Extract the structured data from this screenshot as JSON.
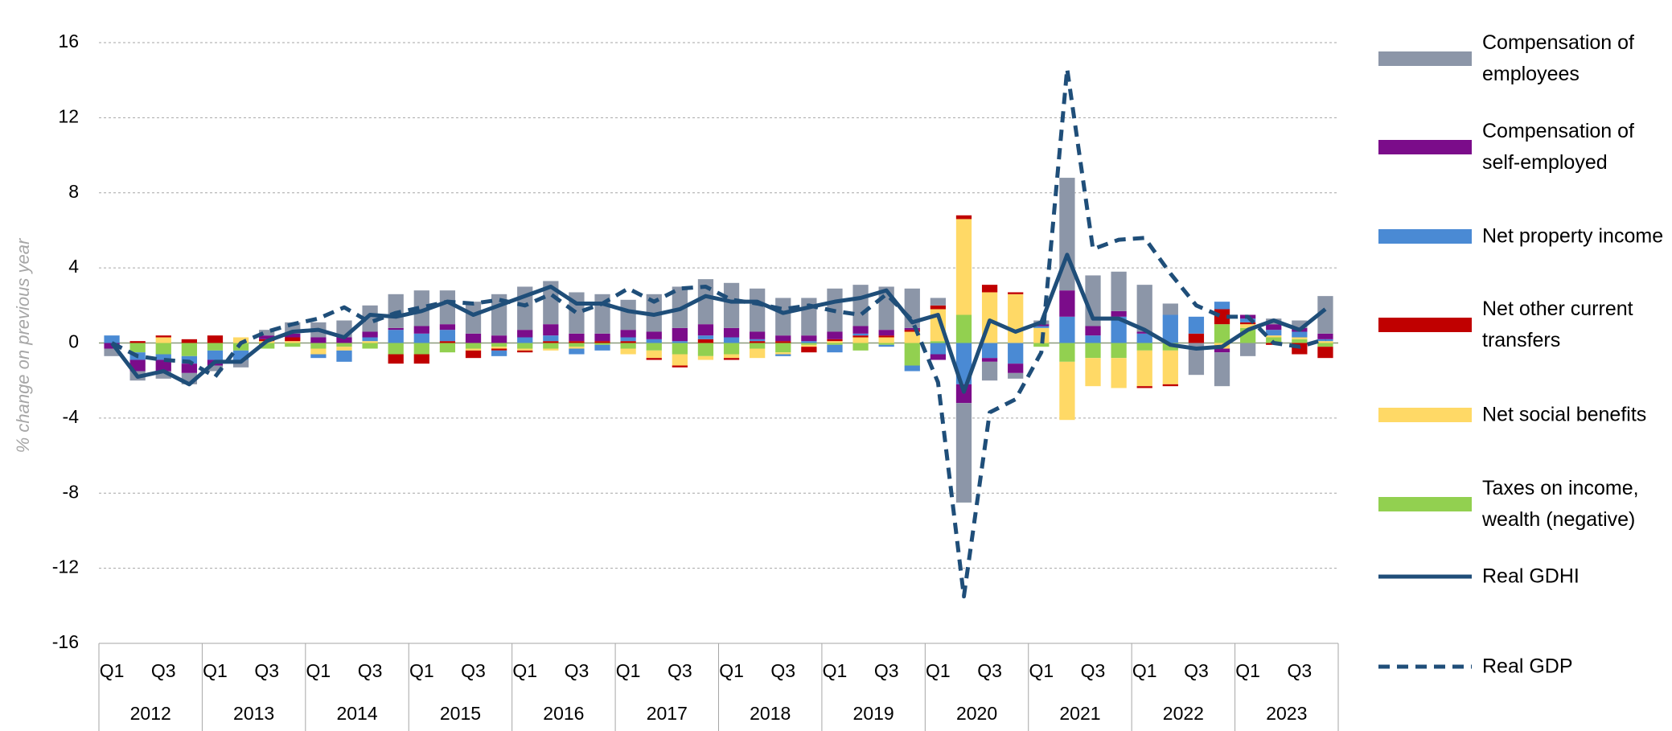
{
  "chart_data": {
    "type": "bar",
    "y_label": "% change on previous year",
    "categories": [
      "Q1",
      null,
      "Q3",
      null,
      "Q1",
      null,
      "Q3",
      null,
      "Q1",
      null,
      "Q3",
      null,
      "Q1",
      null,
      "Q3",
      null,
      "Q1",
      null,
      "Q3",
      null,
      "Q1",
      null,
      "Q3",
      null,
      "Q1",
      null,
      "Q3",
      null,
      "Q1",
      null,
      "Q3",
      null,
      "Q1",
      null,
      "Q3",
      null,
      "Q1",
      null,
      "Q3",
      null,
      "Q1",
      null,
      "Q3",
      null,
      "Q1",
      null,
      "Q3",
      null
    ],
    "years": [
      "2012",
      "2013",
      "2014",
      "2015",
      "2016",
      "2017",
      "2018",
      "2019",
      "2020",
      "2021",
      "2022",
      "2023"
    ],
    "ylim": [
      -16,
      16
    ],
    "yticks": [
      -16,
      -12,
      -8,
      -4,
      0,
      4,
      8,
      12,
      16
    ],
    "grid": true,
    "legend": "right",
    "series": [
      {
        "name": "Compensation of employees",
        "type": "bar",
        "color": "#8c96a8",
        "values": [
          -0.4,
          -0.5,
          -0.4,
          -0.6,
          -0.3,
          -0.4,
          0.3,
          0.6,
          0.8,
          0.9,
          1.4,
          1.8,
          1.9,
          1.8,
          1.7,
          2.2,
          2.3,
          2.3,
          2.2,
          2.1,
          1.6,
          2.0,
          2.2,
          2.4,
          2.4,
          2.3,
          2.0,
          2.0,
          2.3,
          2.2,
          2.3,
          2.1,
          0.4,
          -5.3,
          -1.0,
          -0.3,
          0.2,
          6.0,
          2.7,
          2.1,
          2.5,
          0.6,
          -1.7,
          -1.8,
          -0.7,
          0.3,
          0.4,
          2.0
        ]
      },
      {
        "name": "Compensation of self-employed",
        "type": "bar",
        "color": "#7b0c8a",
        "values": [
          -0.3,
          -0.6,
          -0.6,
          -0.5,
          -0.3,
          0,
          0.2,
          0.2,
          0.3,
          0.3,
          0.3,
          0.1,
          0.4,
          0.3,
          0.5,
          0.4,
          0.4,
          0.6,
          0.4,
          0.4,
          0.4,
          0.4,
          0.7,
          0.6,
          0.5,
          0.4,
          0.3,
          0.3,
          0.4,
          0.4,
          0.3,
          0.1,
          -0.3,
          -1.0,
          -0.2,
          -0.5,
          0.1,
          1.4,
          0.5,
          0.3,
          0.1,
          0,
          0,
          -0.2,
          0.2,
          0.3,
          0.2,
          0.3
        ]
      },
      {
        "name": "Net property income",
        "type": "bar",
        "color": "#4a8ad4",
        "values": [
          0.4,
          -0.4,
          -0.3,
          -0.4,
          -0.5,
          -0.5,
          0,
          0,
          -0.2,
          -0.6,
          0.2,
          0.7,
          0.5,
          0.6,
          0,
          -0.3,
          0.3,
          0.3,
          -0.3,
          -0.3,
          0.2,
          0.2,
          0.1,
          0.2,
          0.3,
          0.1,
          -0.1,
          0.1,
          -0.4,
          0.1,
          -0.1,
          -0.3,
          -0.6,
          -2.2,
          -0.8,
          -1.1,
          0.1,
          1.4,
          0.4,
          1.4,
          0.5,
          1.5,
          0.9,
          0.4,
          0.2,
          0.3,
          0.3,
          0.1
        ]
      },
      {
        "name": "Net other current transfers",
        "type": "bar",
        "color": "#c00000",
        "values": [
          0,
          0.1,
          0.1,
          0.2,
          0.4,
          0,
          0.1,
          0.2,
          0,
          0,
          0,
          -0.5,
          -0.5,
          0.1,
          -0.4,
          -0.1,
          -0.1,
          0.1,
          0.1,
          0.1,
          0.1,
          -0.1,
          -0.1,
          0.2,
          -0.1,
          0.1,
          0.1,
          -0.3,
          0.1,
          0.1,
          0.1,
          0.1,
          0.2,
          0.2,
          0.4,
          0.1,
          0,
          0,
          0,
          0,
          -0.1,
          -0.1,
          0.5,
          0.8,
          0.1,
          -0.1,
          -0.6,
          -0.6
        ]
      },
      {
        "name": "Net social benefits",
        "type": "bar",
        "color": "#ffd966",
        "values": [
          0,
          0,
          0.3,
          0,
          0,
          0.3,
          0.1,
          0.1,
          -0.3,
          -0.2,
          0.1,
          0,
          0,
          0,
          -0.1,
          -0.1,
          -0.1,
          -0.1,
          -0.1,
          0,
          -0.3,
          -0.4,
          -0.6,
          -0.2,
          -0.2,
          -0.5,
          -0.1,
          -0.1,
          0.1,
          0.3,
          0.3,
          0.6,
          1.7,
          5.1,
          2.7,
          2.6,
          0.8,
          -3.1,
          -1.5,
          -1.6,
          -1.9,
          -1.8,
          0,
          -0.3,
          0.2,
          0.1,
          0.1,
          0.1
        ]
      },
      {
        "name": "Taxes on income, wealth (negative)",
        "type": "bar",
        "color": "#92d050",
        "values": [
          0,
          -0.5,
          -0.6,
          -0.7,
          -0.4,
          -0.4,
          -0.3,
          -0.2,
          -0.3,
          -0.2,
          -0.3,
          -0.6,
          -0.6,
          -0.5,
          -0.3,
          -0.2,
          -0.3,
          -0.3,
          -0.2,
          -0.1,
          -0.3,
          -0.4,
          -0.6,
          -0.7,
          -0.6,
          -0.3,
          -0.5,
          -0.1,
          -0.1,
          -0.4,
          -0.1,
          -1.2,
          0.1,
          1.5,
          0,
          0,
          -0.2,
          -1.0,
          -0.8,
          -0.8,
          -0.4,
          -0.4,
          0,
          1.0,
          0.8,
          0.3,
          0.2,
          -0.2
        ]
      },
      {
        "name": "Real GDHI",
        "type": "line",
        "color": "#1f4e79",
        "dashed": false,
        "values": [
          0,
          -1.8,
          -1.5,
          -2.2,
          -1.0,
          -1.0,
          0.1,
          0.6,
          0.7,
          0.3,
          1.5,
          1.4,
          1.7,
          2.2,
          1.5,
          2.0,
          2.5,
          3.0,
          2.1,
          2.1,
          1.7,
          1.5,
          1.8,
          2.5,
          2.2,
          2.2,
          1.6,
          1.9,
          2.2,
          2.4,
          2.8,
          1.1,
          1.5,
          -2.6,
          1.2,
          0.6,
          1.1,
          4.7,
          1.3,
          1.3,
          0.7,
          -0.1,
          -0.3,
          -0.2,
          0.7,
          1.2,
          0.7,
          1.8
        ]
      },
      {
        "name": "Real GDP",
        "type": "line",
        "color": "#1f4e79",
        "dashed": true,
        "values": [
          0,
          -0.7,
          -0.9,
          -1.0,
          -1.8,
          0.0,
          0.6,
          1.0,
          1.3,
          1.9,
          1.1,
          1.6,
          1.9,
          2.2,
          2.1,
          2.3,
          2.0,
          2.6,
          1.6,
          2.1,
          2.9,
          2.2,
          2.9,
          3.0,
          2.3,
          2.1,
          1.8,
          2.0,
          1.7,
          1.5,
          2.6,
          1.2,
          -2.1,
          -13.5,
          -3.7,
          -3.0,
          -0.5,
          14.6,
          5.0,
          5.5,
          5.6,
          3.7,
          2.0,
          1.4,
          1.4,
          0.0,
          -0.2,
          0.2
        ]
      }
    ]
  }
}
